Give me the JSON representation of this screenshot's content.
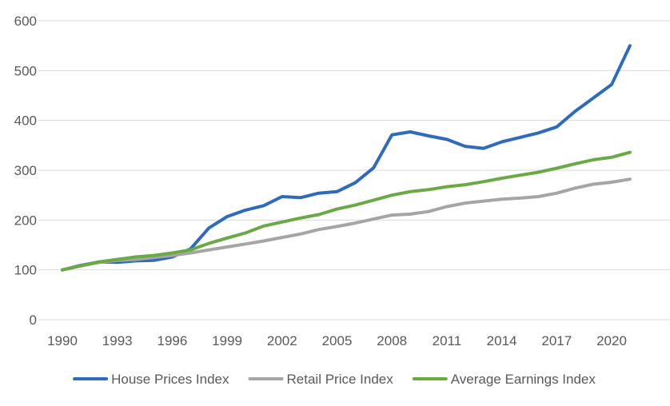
{
  "chart_data": {
    "type": "line",
    "title": "",
    "xlabel": "",
    "ylabel": "",
    "ylim": [
      0,
      600
    ],
    "yticks": [
      0,
      100,
      200,
      300,
      400,
      500,
      600
    ],
    "xlim": [
      1990,
      2021
    ],
    "xticks": [
      1990,
      1993,
      1996,
      1999,
      2002,
      2005,
      2008,
      2011,
      2014,
      2017,
      2020
    ],
    "grid": "horizontal",
    "legend_position": "bottom",
    "x": [
      1990,
      1991,
      1992,
      1993,
      1994,
      1995,
      1996,
      1997,
      1998,
      1999,
      2000,
      2001,
      2002,
      2003,
      2004,
      2005,
      2006,
      2007,
      2008,
      2009,
      2010,
      2011,
      2012,
      2013,
      2014,
      2015,
      2016,
      2017,
      2018,
      2019,
      2020,
      2021
    ],
    "series": [
      {
        "name": "House Prices Index",
        "color": "#2e6bbd",
        "values": [
          100,
          109,
          116,
          115,
          118,
          119,
          126,
          142,
          184,
          207,
          220,
          229,
          247,
          245,
          254,
          257,
          275,
          305,
          371,
          377,
          369,
          362,
          348,
          344,
          357,
          366,
          375,
          387,
          418,
          445,
          472,
          550
        ]
      },
      {
        "name": "Retail Price Index",
        "color": "#a5a5a5",
        "values": [
          100,
          108,
          115,
          119,
          121,
          125,
          129,
          134,
          140,
          146,
          152,
          158,
          165,
          172,
          181,
          187,
          194,
          202,
          210,
          212,
          217,
          227,
          234,
          238,
          242,
          244,
          247,
          254,
          264,
          272,
          276,
          282
        ]
      },
      {
        "name": "Average Earnings Index",
        "color": "#6aaa45",
        "values": [
          100,
          108,
          116,
          121,
          126,
          129,
          134,
          140,
          153,
          164,
          174,
          188,
          196,
          204,
          211,
          222,
          230,
          240,
          250,
          257,
          261,
          267,
          271,
          277,
          284,
          290,
          296,
          304,
          313,
          321,
          326,
          336
        ]
      }
    ]
  }
}
